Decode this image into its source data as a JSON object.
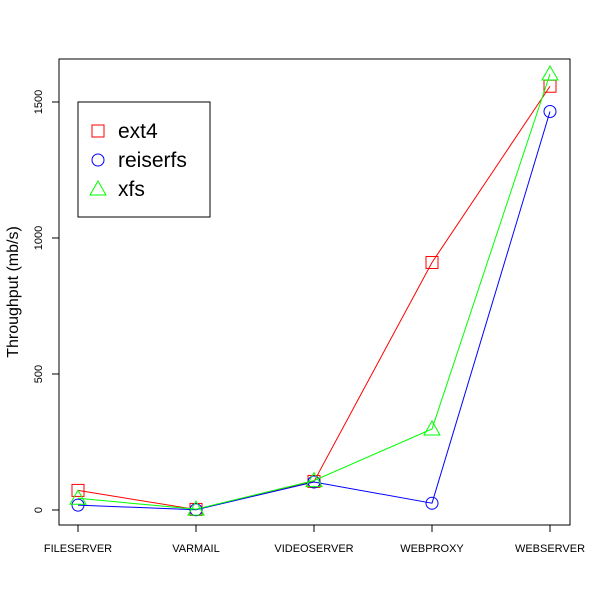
{
  "chart_data": {
    "type": "line",
    "title": "",
    "xlabel": "",
    "ylabel": "Throughput (mb/s)",
    "categories": [
      "FILESERVER",
      "VARMAIL",
      "VIDEOSERVER",
      "WEBPROXY",
      "WEBSERVER"
    ],
    "ylim": [
      -20,
      1630
    ],
    "yticks": [
      0,
      500,
      1000,
      1500
    ],
    "grid": false,
    "legend_position": "top-left",
    "series": [
      {
        "name": "ext4",
        "marker": "square",
        "color": "#ff0000",
        "values": [
          72,
          2,
          105,
          910,
          1558
        ]
      },
      {
        "name": "reiserfs",
        "marker": "circle",
        "color": "#0000ff",
        "values": [
          18,
          1,
          103,
          25,
          1465
        ]
      },
      {
        "name": "xfs",
        "marker": "triangle",
        "color": "#00ff00",
        "values": [
          43,
          3,
          108,
          298,
          1603
        ]
      }
    ]
  }
}
